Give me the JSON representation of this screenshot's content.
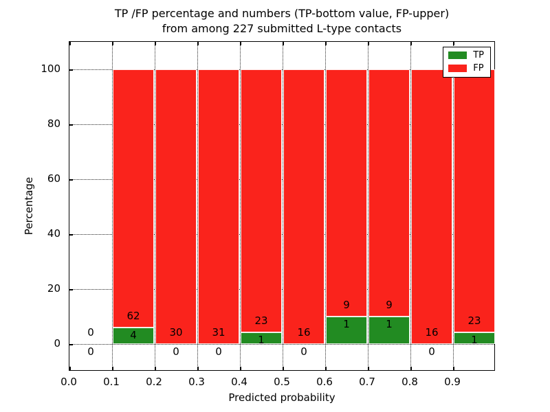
{
  "title_line1": "TP /FP percentage and numbers (TP-bottom value, FP-upper)",
  "title_line2": "from among 227 submitted L-type contacts",
  "chart_data": {
    "type": "bar",
    "stacked": true,
    "title": "TP /FP percentage and numbers (TP-bottom value, FP-upper) from among 227 submitted L-type contacts",
    "xlabel": "Predicted probability",
    "ylabel": "Percentage",
    "xlim": [
      0.0,
      1.0
    ],
    "ylim": [
      -10,
      110
    ],
    "grid": true,
    "legend_position": "upper right",
    "xtick_values": [
      0.0,
      0.1,
      0.2,
      0.3,
      0.4,
      0.5,
      0.6,
      0.7,
      0.8,
      0.9
    ],
    "xtick_labels": [
      "0.0",
      "0.1",
      "0.2",
      "0.3",
      "0.4",
      "0.5",
      "0.6",
      "0.7",
      "0.8",
      "0.9"
    ],
    "ytick_values": [
      0,
      20,
      40,
      60,
      80,
      100
    ],
    "ytick_labels": [
      "0",
      "20",
      "40",
      "60",
      "80",
      "100"
    ],
    "legend": [
      {
        "label": "TP",
        "color": "#228b22"
      },
      {
        "label": "FP",
        "color": "#fa231c"
      }
    ],
    "total_contacts": 227,
    "bins": [
      {
        "range": [
          0.0,
          0.1
        ],
        "tp": 0,
        "fp": 0
      },
      {
        "range": [
          0.1,
          0.2
        ],
        "tp": 4,
        "fp": 62
      },
      {
        "range": [
          0.2,
          0.3
        ],
        "tp": 0,
        "fp": 30
      },
      {
        "range": [
          0.3,
          0.4
        ],
        "tp": 0,
        "fp": 31
      },
      {
        "range": [
          0.4,
          0.5
        ],
        "tp": 1,
        "fp": 23
      },
      {
        "range": [
          0.5,
          0.6
        ],
        "tp": 0,
        "fp": 16
      },
      {
        "range": [
          0.6,
          0.7
        ],
        "tp": 1,
        "fp": 9
      },
      {
        "range": [
          0.7,
          0.8
        ],
        "tp": 1,
        "fp": 9
      },
      {
        "range": [
          0.8,
          0.9
        ],
        "tp": 0,
        "fp": 16
      },
      {
        "range": [
          0.9,
          1.0
        ],
        "tp": 1,
        "fp": 23
      }
    ],
    "label_note": "FP count printed above top of TP segment; TP count printed below it (below axis when TP=0)"
  }
}
